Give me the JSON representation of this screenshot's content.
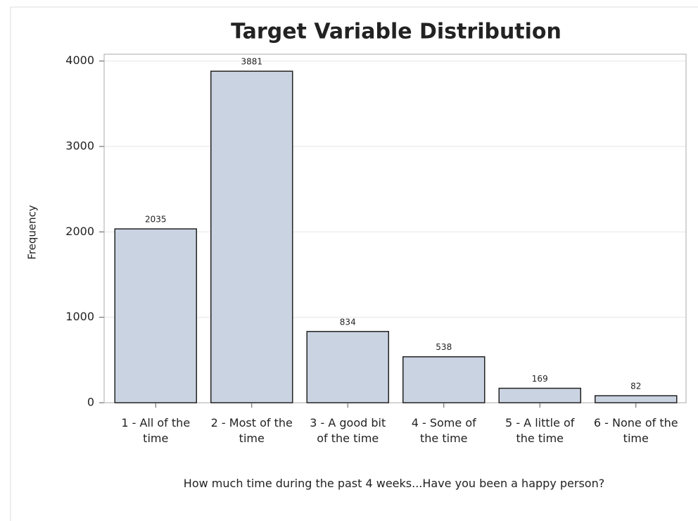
{
  "chart_data": {
    "type": "bar",
    "title": "Target Variable Distribution",
    "x_label": "How much time during the past 4 weeks...Have you been a happy person?",
    "y_label": "Frequency",
    "categories": [
      "1 - All of the time",
      "2 - Most of the time",
      "3 - A good bit of the time",
      "4 - Some of the time",
      "5 - A little of the time",
      "6 - None of the time"
    ],
    "values": [
      2035,
      3881,
      834,
      538,
      169,
      82
    ],
    "color": "#cad3e2",
    "ylim": [
      0,
      4080
    ],
    "yticks": [
      0,
      1000,
      2000,
      3000,
      4000
    ],
    "grid": true
  }
}
